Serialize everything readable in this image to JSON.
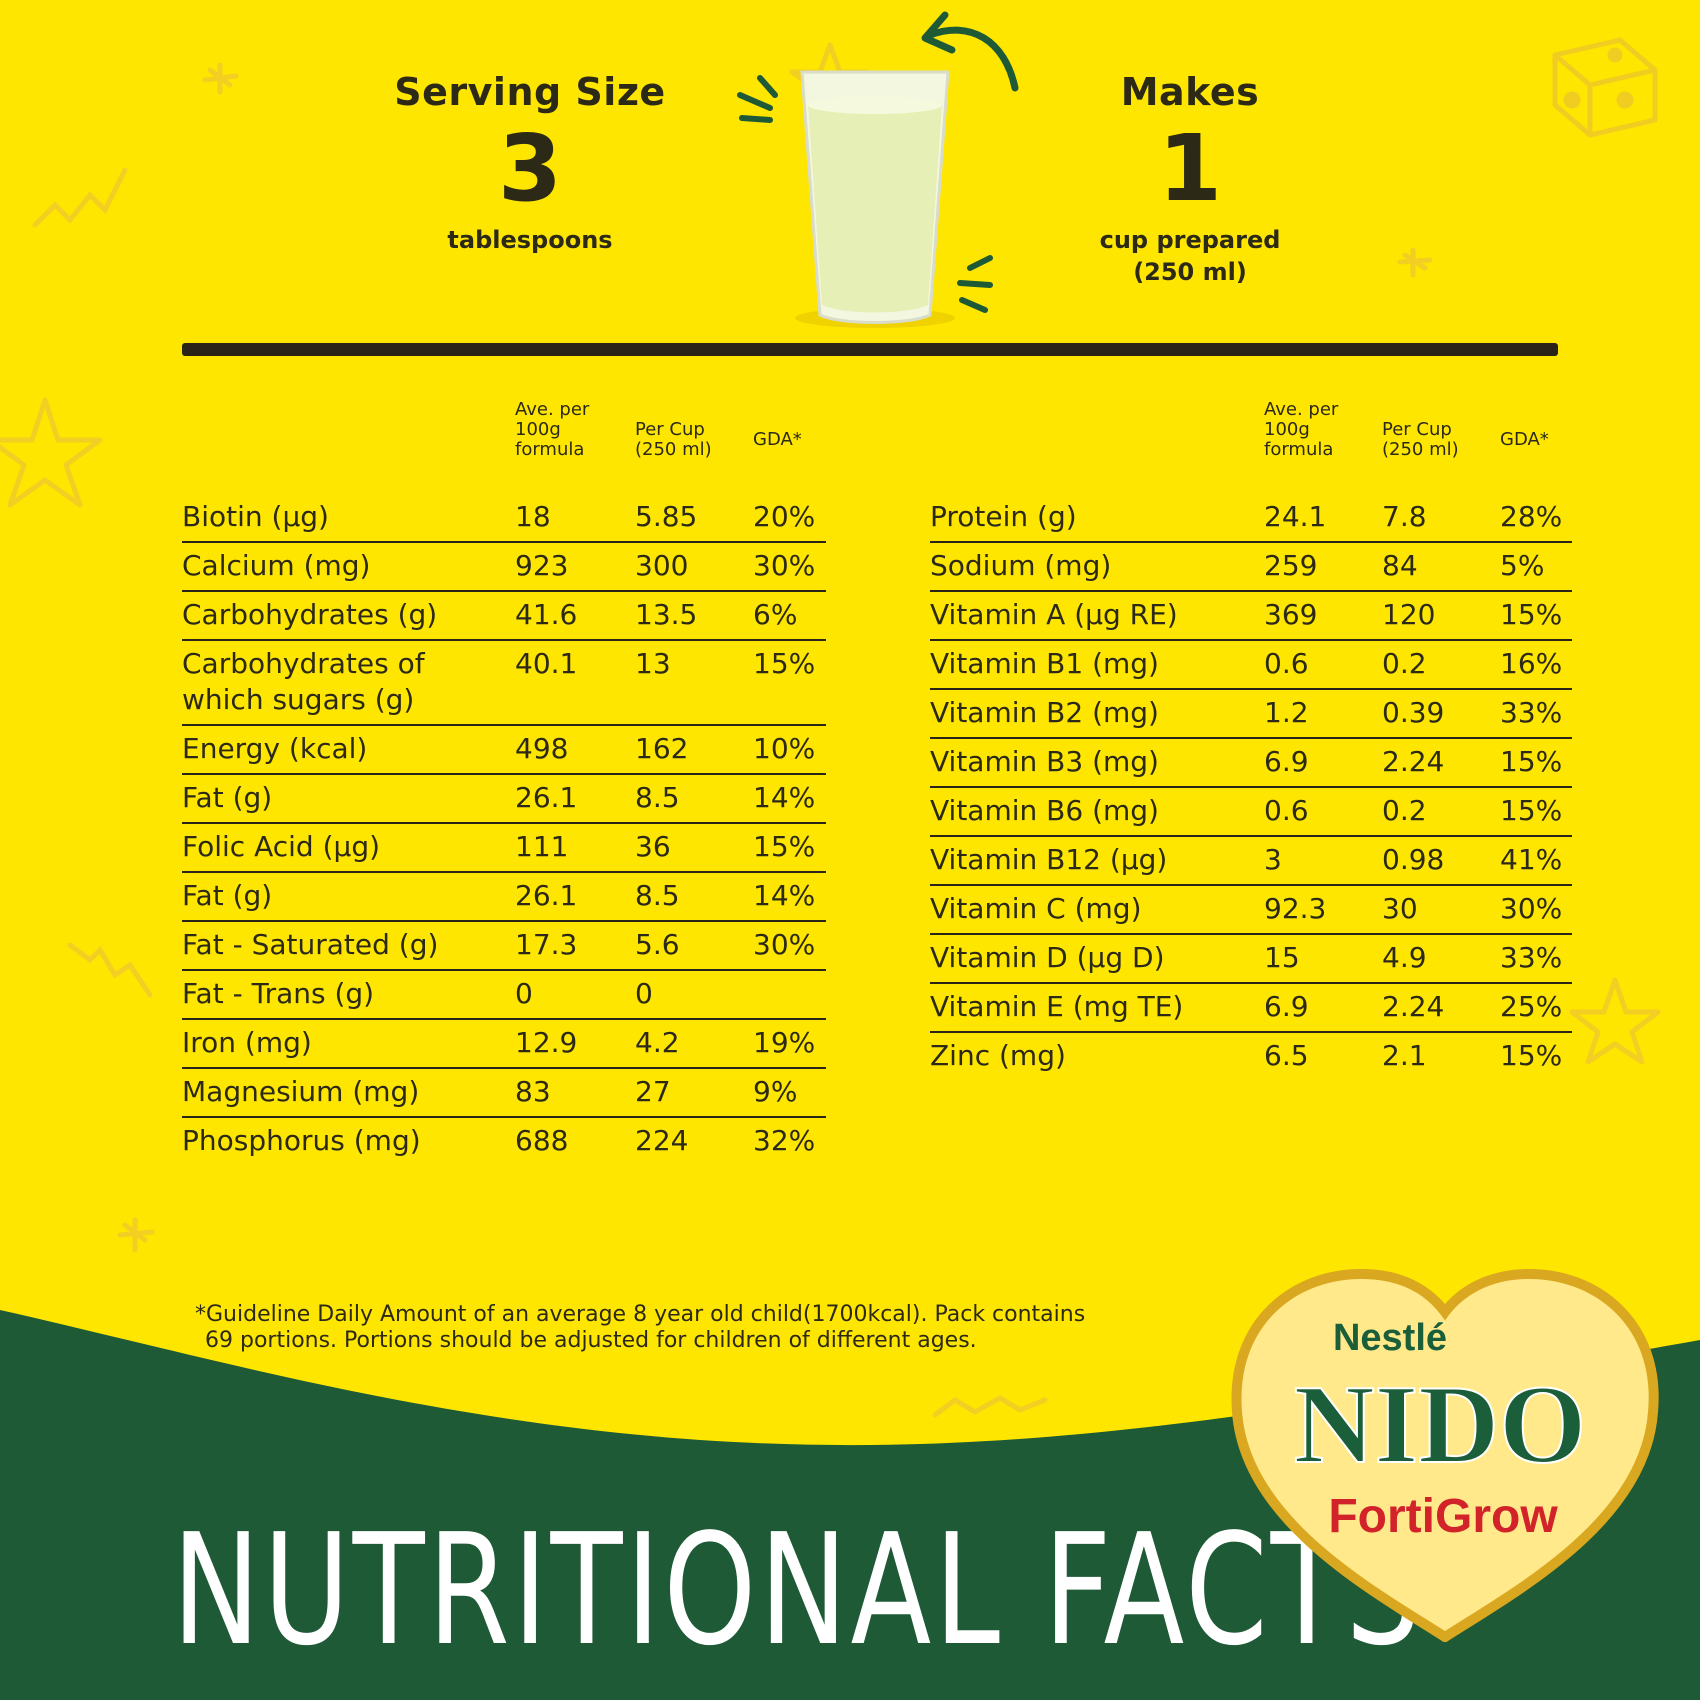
{
  "serving": {
    "label": "Serving Size",
    "value": "3",
    "unit": "tablespoons"
  },
  "makes": {
    "label": "Makes",
    "value": "1",
    "unit_line1": "cup prepared",
    "unit_line2": "(250 ml)"
  },
  "headers": {
    "ave": [
      "Ave. per",
      "100g formula"
    ],
    "cup": [
      "Per Cup",
      "(250 ml)"
    ],
    "gda": "GDA*"
  },
  "left_table": [
    {
      "name": "Biotin (µg)",
      "ave": "18",
      "cup": "5.85",
      "gda": "20%"
    },
    {
      "name": "Calcium (mg)",
      "ave": "923",
      "cup": "300",
      "gda": "30%"
    },
    {
      "name": "Carbohydrates (g)",
      "ave": "41.6",
      "cup": "13.5",
      "gda": "6%"
    },
    {
      "name": "Carbohydrates of which sugars (g)",
      "ave": "40.1",
      "cup": "13",
      "gda": "15%"
    },
    {
      "name": "Energy (kcal)",
      "ave": "498",
      "cup": "162",
      "gda": "10%"
    },
    {
      "name": "Fat (g)",
      "ave": "26.1",
      "cup": "8.5",
      "gda": "14%"
    },
    {
      "name": "Folic Acid (µg)",
      "ave": "111",
      "cup": "36",
      "gda": "15%"
    },
    {
      "name": "Fat (g)",
      "ave": "26.1",
      "cup": "8.5",
      "gda": "14%"
    },
    {
      "name": "Fat - Saturated (g)",
      "ave": "17.3",
      "cup": "5.6",
      "gda": "30%"
    },
    {
      "name": "Fat - Trans (g)",
      "ave": "0",
      "cup": "0",
      "gda": ""
    },
    {
      "name": "Iron (mg)",
      "ave": "12.9",
      "cup": "4.2",
      "gda": "19%"
    },
    {
      "name": "Magnesium (mg)",
      "ave": "83",
      "cup": "27",
      "gda": "9%"
    },
    {
      "name": "Phosphorus (mg)",
      "ave": "688",
      "cup": "224",
      "gda": "32%"
    }
  ],
  "right_table": [
    {
      "name": "Protein (g)",
      "ave": "24.1",
      "cup": "7.8",
      "gda": "28%"
    },
    {
      "name": "Sodium (mg)",
      "ave": "259",
      "cup": "84",
      "gda": "5%"
    },
    {
      "name": "Vitamin A (µg RE)",
      "ave": "369",
      "cup": "120",
      "gda": "15%"
    },
    {
      "name": "Vitamin B1 (mg)",
      "ave": "0.6",
      "cup": "0.2",
      "gda": "16%"
    },
    {
      "name": "Vitamin B2 (mg)",
      "ave": "1.2",
      "cup": "0.39",
      "gda": "33%"
    },
    {
      "name": "Vitamin B3 (mg)",
      "ave": "6.9",
      "cup": "2.24",
      "gda": "15%"
    },
    {
      "name": "Vitamin B6 (mg)",
      "ave": "0.6",
      "cup": "0.2",
      "gda": "15%"
    },
    {
      "name": "Vitamin B12 (µg)",
      "ave": "3",
      "cup": "0.98",
      "gda": "41%"
    },
    {
      "name": "Vitamin C (mg)",
      "ave": "92.3",
      "cup": "30",
      "gda": "30%"
    },
    {
      "name": "Vitamin D (µg D)",
      "ave": "15",
      "cup": "4.9",
      "gda": "33%"
    },
    {
      "name": "Vitamin E (mg TE)",
      "ave": "6.9",
      "cup": "2.24",
      "gda": "25%"
    },
    {
      "name": "Zinc (mg)",
      "ave": "6.5",
      "cup": "2.1",
      "gda": "15%"
    }
  ],
  "footnote": [
    "*Guideline Daily Amount of an average 8 year old child(1700kcal). Pack contains",
    "69 portions. Portions should be adjusted for children of different ages."
  ],
  "title": "NUTRITIONAL FACTS",
  "brand": {
    "maker": "Nestlé",
    "name": "NIDO",
    "variant": "FortiGrow"
  },
  "colors": {
    "background": "#FFE600",
    "green_band": "#1E5A36",
    "text": "#2c2a17",
    "brand_green": "#1B5E3A",
    "brand_red": "#D2232A"
  },
  "icons": [
    "milk-glass-icon",
    "curved-arrow-icon",
    "star-doodle-icon",
    "squiggle-doodle-icon",
    "dice-doodle-icon"
  ]
}
